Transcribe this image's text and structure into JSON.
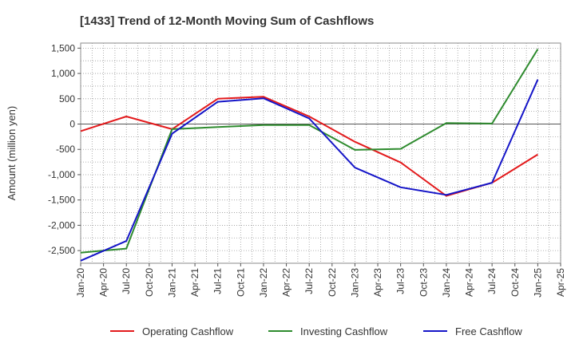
{
  "chart_data": {
    "type": "line",
    "title": "[1433]  Trend of 12-Month Moving Sum of Cashflows",
    "xlabel": "",
    "ylabel": "Amount (million yen)",
    "ylim": [
      -2750,
      1600
    ],
    "yticks": [
      1500,
      1000,
      500,
      0,
      -500,
      -1000,
      -1500,
      -2000,
      -2500
    ],
    "ytick_labels": [
      "1,500",
      "1,000",
      "500",
      "0",
      "-500",
      "-1,000",
      "-1,500",
      "-2,000",
      "-2,500"
    ],
    "xticks": [
      "Jan-20",
      "Apr-20",
      "Jul-20",
      "Oct-20",
      "Jan-21",
      "Apr-21",
      "Jul-21",
      "Oct-21",
      "Jan-22",
      "Apr-22",
      "Jul-22",
      "Oct-22",
      "Jan-23",
      "Apr-23",
      "Jul-23",
      "Oct-23",
      "Jan-24",
      "Apr-24",
      "Jul-24",
      "Oct-24",
      "Jan-25",
      "Apr-25"
    ],
    "x": [
      "Jan-20",
      "Jul-20",
      "Jan-21",
      "Jul-21",
      "Jan-22",
      "Jul-22",
      "Jan-23",
      "Jul-23",
      "Jan-24",
      "Jul-24",
      "Jan-25"
    ],
    "grid": true,
    "legend_position": "bottom",
    "series": [
      {
        "name": "Operating Cashflow",
        "color": "#e31a1c",
        "values": [
          -140,
          150,
          -100,
          500,
          540,
          150,
          -350,
          -760,
          -1420,
          -1160,
          -600
        ]
      },
      {
        "name": "Investing Cashflow",
        "color": "#2e8b2e",
        "values": [
          -2540,
          -2460,
          -100,
          -60,
          -20,
          -20,
          -510,
          -490,
          20,
          10,
          1480
        ]
      },
      {
        "name": "Free Cashflow",
        "color": "#1515c8",
        "values": [
          -2700,
          -2310,
          -190,
          440,
          510,
          110,
          -860,
          -1250,
          -1400,
          -1160,
          880
        ]
      }
    ]
  }
}
